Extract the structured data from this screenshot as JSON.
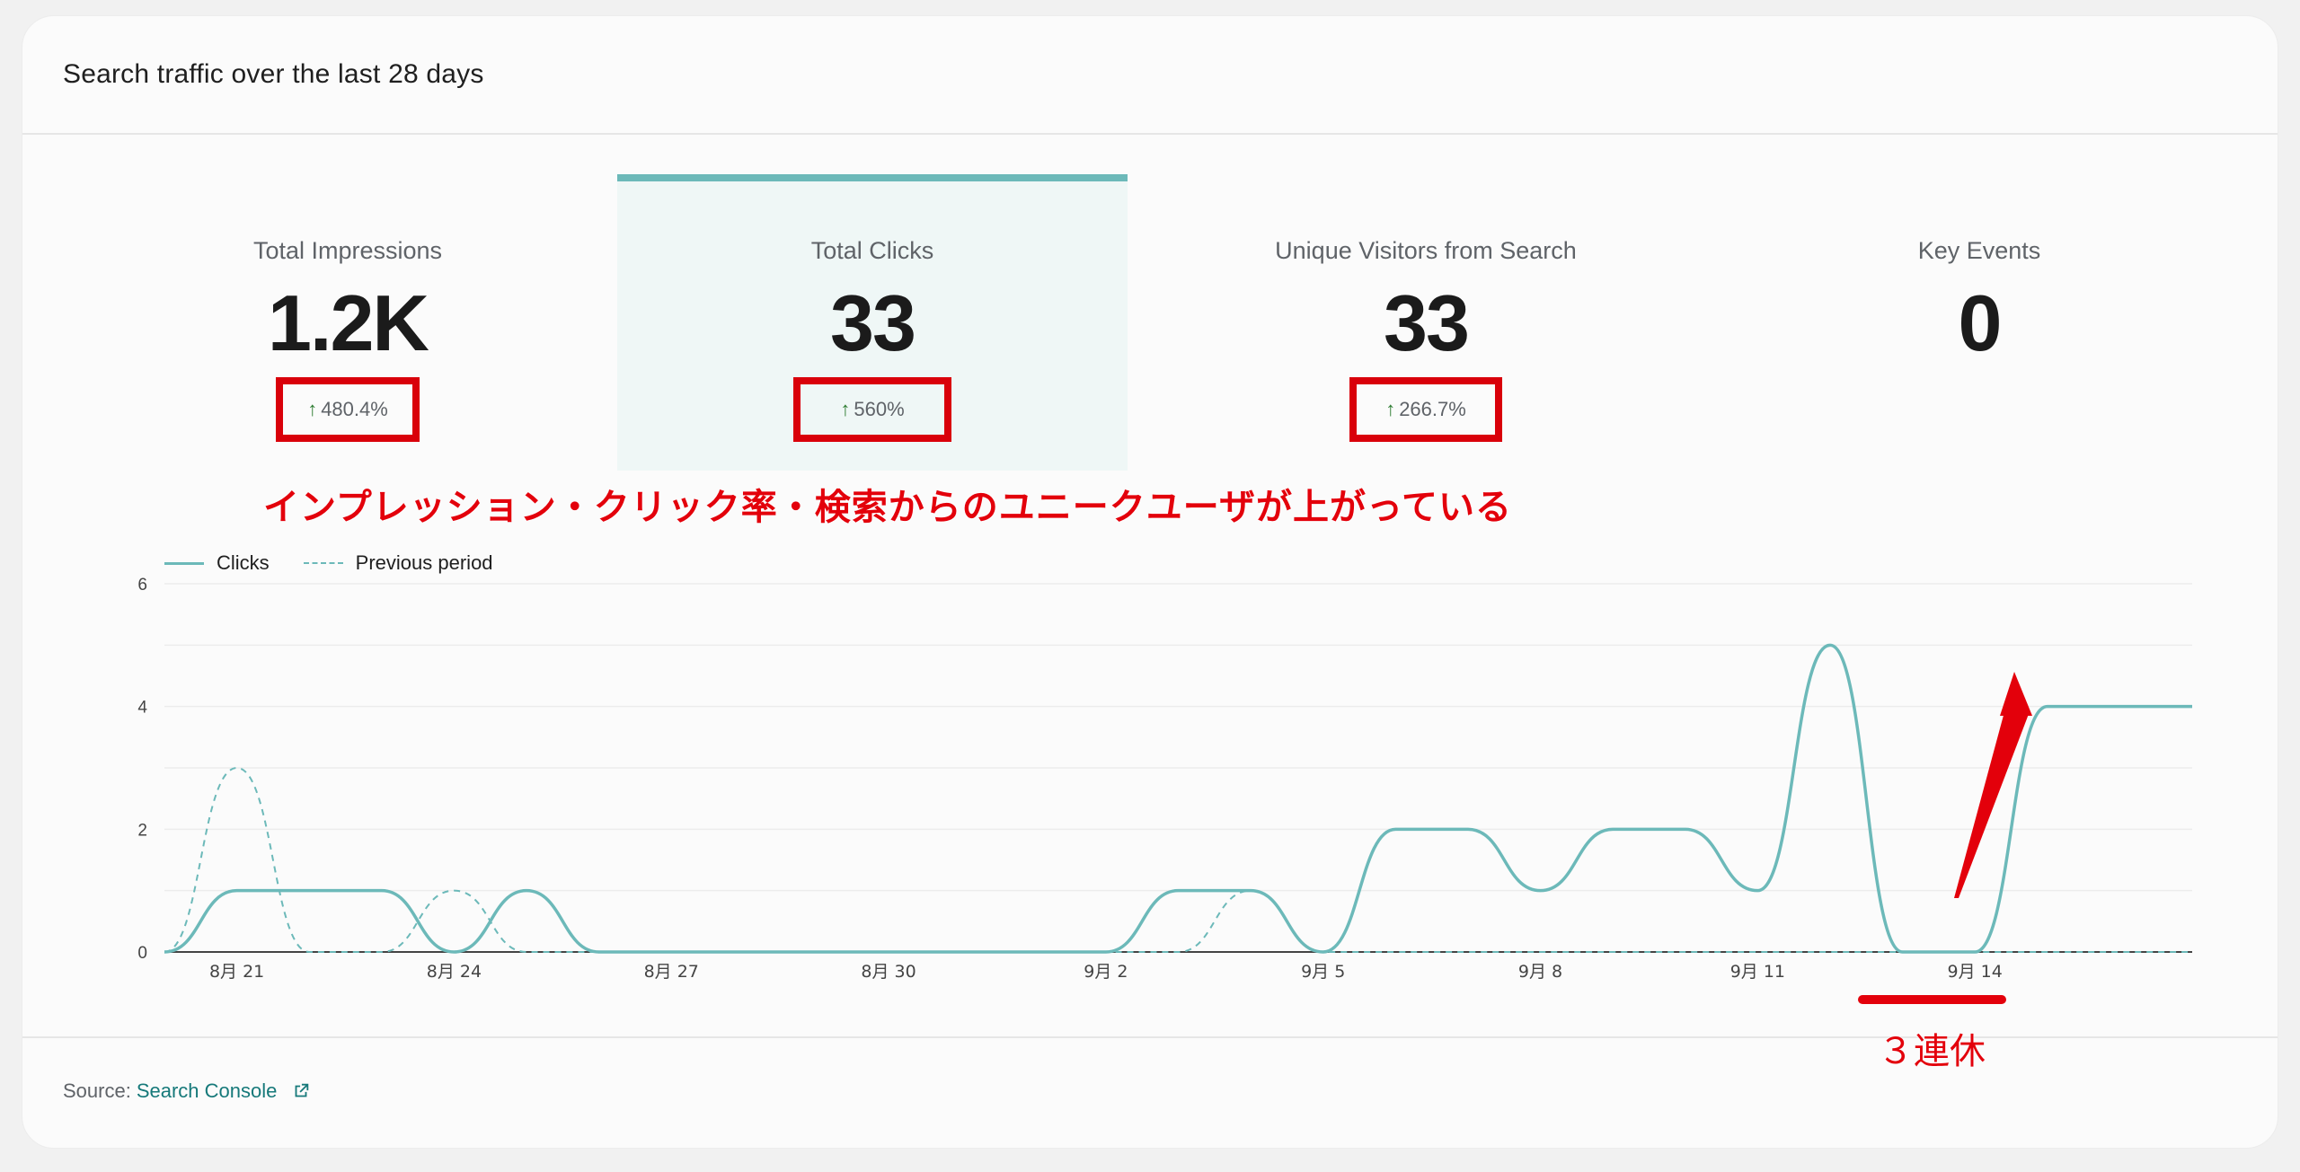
{
  "card": {
    "title": "Search traffic over the last 28 days"
  },
  "metrics": [
    {
      "label": "Total Impressions",
      "value": "1.2K",
      "change": "480.4%",
      "selected": false
    },
    {
      "label": "Total Clicks",
      "value": "33",
      "change": "560%",
      "selected": true
    },
    {
      "label": "Unique Visitors from Search",
      "value": "33",
      "change": "266.7%",
      "selected": false
    },
    {
      "label": "Key Events",
      "value": "0",
      "change": "",
      "selected": false
    }
  ],
  "annotations": {
    "main": "インプレッション・クリック率・検索からのユニークユーザが上がっている",
    "holiday": "３連休"
  },
  "chart_data": {
    "type": "line",
    "series": [
      {
        "name": "Clicks",
        "style": "solid",
        "color": "#6cb9b9",
        "values": [
          0,
          1,
          1,
          1,
          0,
          1,
          0,
          0,
          0,
          0,
          0,
          0,
          0,
          0,
          1,
          1,
          0,
          2,
          2,
          1,
          2,
          2,
          1,
          5,
          0,
          0,
          4,
          4,
          4
        ]
      },
      {
        "name": "Previous period",
        "style": "dashed",
        "color": "#6cb9b9",
        "values": [
          0,
          3,
          0,
          0,
          1,
          0,
          0,
          0,
          0,
          0,
          0,
          0,
          0,
          0,
          0,
          1,
          0,
          0,
          0,
          0,
          0,
          0,
          0,
          0,
          0,
          0,
          0,
          0,
          0
        ]
      }
    ],
    "x_tick_labels": [
      "8月 21",
      "8月 24",
      "8月 27",
      "8月 30",
      "9月 2",
      "9月 5",
      "9月 8",
      "9月 11",
      "9月 14"
    ],
    "y_tick_labels": [
      "0",
      "2",
      "4",
      "6"
    ],
    "ylim": [
      0,
      6
    ],
    "grid": true,
    "legend": "top-left"
  },
  "footer": {
    "source_label": "Source:",
    "source_link": "Search Console",
    "link_icon": "external-link-icon"
  },
  "colors": {
    "accent": "#6cb9b9",
    "annotation_red": "#e3000b",
    "positive_green": "#2e7d32",
    "link": "#16797a"
  }
}
